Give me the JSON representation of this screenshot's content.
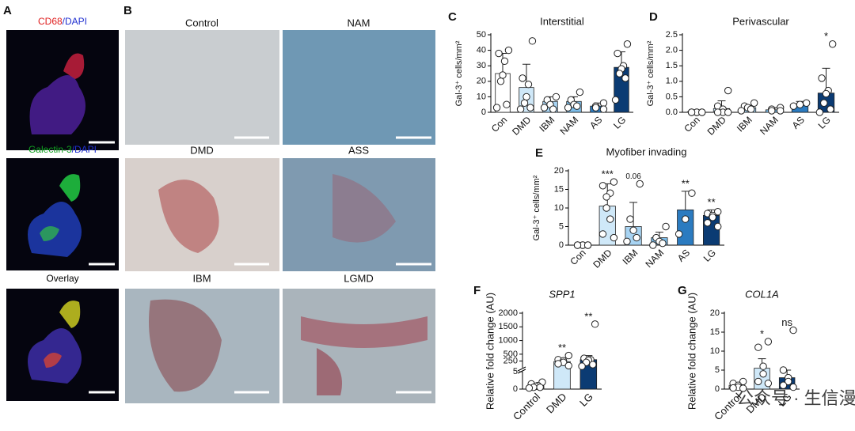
{
  "figure": {
    "panel_a": "A",
    "panel_b": "B",
    "a_labels": [
      {
        "parts": [
          {
            "text": "CD68",
            "color": "#e02020"
          },
          {
            "text": "/DAPI",
            "color": "#2030d0"
          }
        ]
      },
      {
        "parts": [
          {
            "text": "Galectin-3",
            "color": "#10a020"
          },
          {
            "text": "/DAPI",
            "color": "#2030d0"
          }
        ]
      },
      {
        "parts": [
          {
            "text": "Overlay",
            "color": "#000000"
          }
        ]
      }
    ],
    "b_labels": [
      "Control",
      "NAM",
      "DMD",
      "ASS",
      "IBM",
      "LGMD"
    ],
    "watermark": "公众号 · 生信漫卷"
  },
  "chart_data": [
    {
      "type": "bar",
      "panel": "C",
      "title": "Interstitial",
      "ylabel": "Gal-3⁺ cells/mm²",
      "categories": [
        "Con",
        "DMD",
        "IBM",
        "NAM",
        "AS",
        "LG"
      ],
      "values": [
        25,
        16,
        7,
        7,
        4,
        29
      ],
      "errors": [
        13,
        15,
        3,
        3,
        2,
        10
      ],
      "colors": [
        "#ffffff",
        "#cfe8f8",
        "#a8d4f3",
        "#7dbde9",
        "#2b7bc0",
        "#0b3b73"
      ],
      "points": [
        [
          40,
          38,
          33,
          24,
          20,
          5,
          3
        ],
        [
          46,
          22,
          18,
          10,
          6,
          3,
          2
        ],
        [
          10,
          8,
          5,
          2,
          3
        ],
        [
          13,
          8,
          5,
          4,
          3
        ],
        [
          6,
          4,
          3,
          2
        ],
        [
          44,
          38,
          30,
          28,
          25,
          22,
          8
        ]
      ],
      "ylim": [
        0,
        50
      ],
      "yticks": [
        0,
        10,
        20,
        30,
        40,
        50
      ]
    },
    {
      "type": "bar",
      "panel": "D",
      "title": "Perivascular",
      "ylabel": "Gal-3⁺ cells/mm²",
      "categories": [
        "Con",
        "DMD",
        "IBM",
        "NAM",
        "AS",
        "LG"
      ],
      "values": [
        0.02,
        0.12,
        0.15,
        0.08,
        0.25,
        0.62
      ],
      "errors": [
        0.02,
        0.25,
        0.08,
        0.07,
        0.1,
        0.8
      ],
      "colors": [
        "#ffffff",
        "#cfe8f8",
        "#a8d4f3",
        "#7dbde9",
        "#2b7bc0",
        "#0b3b73"
      ],
      "points": [
        [
          0,
          0,
          0,
          0,
          0,
          0
        ],
        [
          0.7,
          0.2,
          0.1,
          0,
          0,
          0
        ],
        [
          0.3,
          0.2,
          0.15,
          0.1,
          0.05
        ],
        [
          0.15,
          0.1,
          0.05,
          0.05
        ],
        [
          0.3,
          0.25,
          0.2
        ],
        [
          2.2,
          1.1,
          0.7,
          0.6,
          0.3,
          0.1,
          0
        ]
      ],
      "ylim": [
        0,
        2.5
      ],
      "yticks": [
        {
          "value": 0,
          "label": "0.0"
        },
        0.5,
        {
          "value": 1,
          "label": "1.0"
        },
        1.5,
        {
          "value": 2,
          "label": "2.0"
        },
        2.5
      ],
      "annotations": [
        {
          "index": 5,
          "label": "*"
        }
      ]
    },
    {
      "type": "bar",
      "panel": "E",
      "title": "Myofiber invading",
      "ylabel": "Gal-3⁺ cells/mm²",
      "categories": [
        "Con",
        "DMD",
        "IBM",
        "NAM",
        "AS",
        "LG"
      ],
      "values": [
        0,
        10.5,
        5,
        2,
        9.5,
        8
      ],
      "errors": [
        0.2,
        6,
        6.5,
        1.5,
        5,
        1.5
      ],
      "colors": [
        "#ffffff",
        "#cfe8f8",
        "#a8d4f3",
        "#7dbde9",
        "#2b7bc0",
        "#0b3b73"
      ],
      "points": [
        [
          0,
          0,
          0,
          0,
          0,
          0
        ],
        [
          17,
          16,
          14,
          13,
          10,
          7,
          3,
          2
        ],
        [
          16.5,
          7,
          4,
          2,
          1
        ],
        [
          5,
          2,
          1,
          0.5,
          0
        ],
        [
          14,
          7,
          3
        ],
        [
          9,
          8.5,
          8,
          7.5,
          6,
          5
        ]
      ],
      "ylim": [
        0,
        20
      ],
      "yticks": [
        0,
        5,
        10,
        15,
        20
      ],
      "annotations": [
        {
          "index": 1,
          "label": "***"
        },
        {
          "index": 2,
          "label": "0.06"
        },
        {
          "index": 4,
          "label": "**"
        },
        {
          "index": 5,
          "label": "**"
        }
      ]
    },
    {
      "type": "bar",
      "panel": "F",
      "title": "SPP1",
      "ylabel": "Relative fold change (AU)",
      "categories": [
        "Control",
        "DMD",
        "LG"
      ],
      "values": [
        1,
        230,
        300
      ],
      "errors": [
        0.5,
        120,
        150
      ],
      "colors": [
        "#ffffff",
        "#cfe8f8",
        "#0b3b73"
      ],
      "points": [
        [
          2,
          1.5,
          1,
          0.8,
          0.5,
          0.5,
          0.3
        ],
        [
          450,
          300,
          260,
          200,
          150,
          80
        ],
        [
          1600,
          350,
          300,
          280,
          200,
          120,
          60
        ]
      ],
      "ylim": [
        0,
        2000
      ],
      "ybreak": 5,
      "yticks": [
        0,
        5,
        250,
        500,
        1000,
        1500,
        2000
      ],
      "annotations": [
        {
          "index": 1,
          "label": "**"
        },
        {
          "index": 2,
          "label": "**"
        }
      ]
    },
    {
      "type": "bar",
      "panel": "G",
      "title": "COL1A",
      "ylabel": "Relative fold change (AU)",
      "categories": [
        "Control",
        "DMD",
        "LG"
      ],
      "values": [
        1,
        5.5,
        3
      ],
      "errors": [
        0.5,
        2.5,
        2
      ],
      "colors": [
        "#ffffff",
        "#cfe8f8",
        "#0b3b73"
      ],
      "points": [
        [
          2,
          1.5,
          1,
          0.5,
          0.3,
          0.2
        ],
        [
          12.5,
          11,
          6,
          4,
          2,
          1.5
        ],
        [
          15.5,
          5,
          3,
          2,
          1,
          0.5
        ]
      ],
      "ylim": [
        0,
        20
      ],
      "yticks": [
        0,
        5,
        10,
        15,
        20
      ],
      "annotations": [
        {
          "index": 1,
          "label": "*"
        },
        {
          "index": 2,
          "label": "ns"
        }
      ]
    }
  ]
}
